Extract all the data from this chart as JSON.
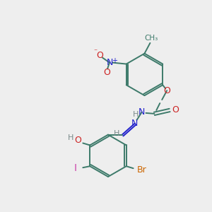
{
  "bg_color": "#eeeeee",
  "bond_color": "#3d7a6a",
  "figsize": [
    3.0,
    3.0
  ],
  "dpi": 100,
  "colors": {
    "N": "#2222cc",
    "O": "#cc2222",
    "Br": "#cc6600",
    "I": "#cc44aa",
    "H": "#7a8a8a",
    "C": "#3d7a6a"
  },
  "lw": 1.4,
  "ring_r": 30,
  "xlim": [
    0,
    300
  ],
  "ylim": [
    0,
    300
  ]
}
